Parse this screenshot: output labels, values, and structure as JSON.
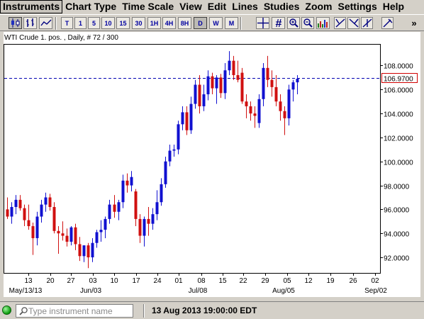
{
  "menu": {
    "items": [
      "Instruments",
      "Chart Type",
      "Time Scale",
      "View",
      "Edit",
      "Lines",
      "Studies",
      "Zoom",
      "Settings",
      "Help"
    ],
    "active": "Instruments"
  },
  "toolbar": {
    "chart_type_icons": [
      "candlestick-icon",
      "bar-chart-icon",
      "line-chart-icon"
    ],
    "timeframes": [
      "T",
      "1",
      "5",
      "10",
      "15",
      "30",
      "1H",
      "4H",
      "8H",
      "D",
      "W",
      "M"
    ],
    "active_timeframe": "D",
    "tool_icons": [
      "crosshair-icon",
      "grid-hash-icon",
      "magnifier-icon",
      "zoom-out-icon",
      "volume-bars-icon",
      "draw-line-icon-1",
      "draw-line-icon-2",
      "draw-line-icon-3",
      "draw-line-icon-4",
      "clear-drawings-icon"
    ],
    "overflow_label": "»"
  },
  "chart_header": "WTI Crude 1. pos. , Daily, # 72 / 300",
  "status": {
    "search_placeholder": "Type instrument name",
    "datetime": "13 Aug 2013 19:00:00 EDT"
  },
  "colors": {
    "up": "#1010d0",
    "down": "#d01010",
    "reference_line": "#0000b0",
    "current_price_border": "#d00000",
    "status_led": "#0a9a0a"
  },
  "chart_data": {
    "type": "candlestick",
    "instrument": "WTI Crude 1. pos.",
    "timeframe": "Daily",
    "reference_price": 106.97,
    "current_price_label": "106.9700",
    "ylim": [
      90.7,
      109.8
    ],
    "y_ticks": [
      "108.0000",
      "106.0000",
      "104.0000",
      "102.0000",
      "100.0000",
      "98.0000",
      "96.0000",
      "94.0000",
      "92.0000"
    ],
    "x_ticks": [
      "13",
      "20",
      "27",
      "03",
      "10",
      "17",
      "24",
      "01",
      "08",
      "15",
      "22",
      "29",
      "05",
      "12",
      "19",
      "26",
      "02"
    ],
    "x_month_labels": [
      "May/13/13",
      "Jun/03",
      "Jul/08",
      "Aug/05",
      "Sep/02"
    ],
    "candles": [
      {
        "date": "05-13",
        "open": 96.0,
        "high": 97.0,
        "low": 95.2,
        "close": 95.4
      },
      {
        "date": "05-14",
        "open": 95.4,
        "high": 96.6,
        "low": 94.8,
        "close": 96.2
      },
      {
        "date": "05-15",
        "open": 96.2,
        "high": 97.2,
        "low": 95.6,
        "close": 96.8
      },
      {
        "date": "05-16",
        "open": 96.8,
        "high": 97.2,
        "low": 95.9,
        "close": 96.1
      },
      {
        "date": "05-17",
        "open": 96.1,
        "high": 96.4,
        "low": 94.6,
        "close": 95.1
      },
      {
        "date": "05-20",
        "open": 95.1,
        "high": 96.4,
        "low": 94.3,
        "close": 94.6
      },
      {
        "date": "05-21",
        "open": 94.6,
        "high": 94.9,
        "low": 92.2,
        "close": 93.6
      },
      {
        "date": "05-22",
        "open": 93.6,
        "high": 95.8,
        "low": 93.0,
        "close": 95.4
      },
      {
        "date": "05-23",
        "open": 95.4,
        "high": 96.8,
        "low": 94.9,
        "close": 96.4
      },
      {
        "date": "05-24",
        "open": 96.4,
        "high": 97.4,
        "low": 95.8,
        "close": 97.0
      },
      {
        "date": "05-27",
        "open": 97.0,
        "high": 97.3,
        "low": 95.9,
        "close": 96.2
      },
      {
        "date": "05-28",
        "open": 96.2,
        "high": 96.6,
        "low": 94.0,
        "close": 94.2
      },
      {
        "date": "05-29",
        "open": 94.2,
        "high": 94.6,
        "low": 92.3,
        "close": 94.0
      },
      {
        "date": "05-30",
        "open": 94.0,
        "high": 95.0,
        "low": 93.4,
        "close": 93.8
      },
      {
        "date": "05-31",
        "open": 93.8,
        "high": 94.4,
        "low": 92.9,
        "close": 93.3
      },
      {
        "date": "06-03",
        "open": 93.3,
        "high": 94.6,
        "low": 93.0,
        "close": 94.5
      },
      {
        "date": "06-04",
        "open": 94.5,
        "high": 94.8,
        "low": 92.6,
        "close": 93.1
      },
      {
        "date": "06-05",
        "open": 93.1,
        "high": 93.7,
        "low": 91.7,
        "close": 92.1
      },
      {
        "date": "06-06",
        "open": 92.1,
        "high": 93.0,
        "low": 91.6,
        "close": 93.0
      },
      {
        "date": "06-07",
        "open": 93.0,
        "high": 93.2,
        "low": 91.1,
        "close": 92.0
      },
      {
        "date": "06-10",
        "open": 92.0,
        "high": 93.6,
        "low": 91.6,
        "close": 93.2
      },
      {
        "date": "06-11",
        "open": 93.2,
        "high": 94.3,
        "low": 92.8,
        "close": 94.1
      },
      {
        "date": "06-12",
        "open": 94.1,
        "high": 95.1,
        "low": 93.3,
        "close": 94.3
      },
      {
        "date": "06-13",
        "open": 94.3,
        "high": 95.4,
        "low": 93.6,
        "close": 95.2
      },
      {
        "date": "06-14",
        "open": 95.2,
        "high": 96.8,
        "low": 94.8,
        "close": 96.4
      },
      {
        "date": "06-17",
        "open": 96.4,
        "high": 97.2,
        "low": 95.3,
        "close": 95.8
      },
      {
        "date": "06-18",
        "open": 95.8,
        "high": 96.8,
        "low": 95.1,
        "close": 96.6
      },
      {
        "date": "06-19",
        "open": 96.6,
        "high": 98.9,
        "low": 96.1,
        "close": 98.4
      },
      {
        "date": "06-20",
        "open": 98.4,
        "high": 99.0,
        "low": 97.4,
        "close": 98.0
      },
      {
        "date": "06-21",
        "open": 98.0,
        "high": 99.2,
        "low": 97.5,
        "close": 98.7
      },
      {
        "date": "06-24",
        "open": 97.5,
        "high": 97.7,
        "low": 94.6,
        "close": 95.2
      },
      {
        "date": "06-25",
        "open": 95.2,
        "high": 95.6,
        "low": 93.2,
        "close": 93.8
      },
      {
        "date": "06-26",
        "open": 93.8,
        "high": 95.4,
        "low": 92.9,
        "close": 95.2
      },
      {
        "date": "06-27",
        "open": 95.2,
        "high": 96.2,
        "low": 93.8,
        "close": 94.8
      },
      {
        "date": "06-28",
        "open": 94.8,
        "high": 96.1,
        "low": 94.3,
        "close": 95.6
      },
      {
        "date": "07-01",
        "open": 95.6,
        "high": 97.6,
        "low": 95.1,
        "close": 96.6
      },
      {
        "date": "07-02",
        "open": 96.6,
        "high": 98.6,
        "low": 96.3,
        "close": 98.1
      },
      {
        "date": "07-03",
        "open": 98.1,
        "high": 100.4,
        "low": 97.8,
        "close": 100.0
      },
      {
        "date": "07-05",
        "open": 100.0,
        "high": 101.4,
        "low": 99.6,
        "close": 100.9
      },
      {
        "date": "07-08",
        "open": 100.9,
        "high": 101.4,
        "low": 100.4,
        "close": 101.0
      },
      {
        "date": "07-09",
        "open": 101.0,
        "high": 103.4,
        "low": 100.6,
        "close": 103.1
      },
      {
        "date": "07-10",
        "open": 103.1,
        "high": 104.6,
        "low": 102.6,
        "close": 104.1
      },
      {
        "date": "07-11",
        "open": 104.1,
        "high": 104.6,
        "low": 102.2,
        "close": 102.6
      },
      {
        "date": "07-12",
        "open": 102.6,
        "high": 105.4,
        "low": 102.3,
        "close": 104.8
      },
      {
        "date": "07-15",
        "open": 104.8,
        "high": 106.8,
        "low": 104.4,
        "close": 106.4
      },
      {
        "date": "07-16",
        "open": 106.4,
        "high": 107.2,
        "low": 104.0,
        "close": 104.6
      },
      {
        "date": "07-17",
        "open": 104.6,
        "high": 106.4,
        "low": 104.2,
        "close": 105.6
      },
      {
        "date": "07-18",
        "open": 105.6,
        "high": 107.6,
        "low": 105.1,
        "close": 107.1
      },
      {
        "date": "07-19",
        "open": 107.1,
        "high": 107.4,
        "low": 105.6,
        "close": 106.1
      },
      {
        "date": "07-22",
        "open": 106.1,
        "high": 107.2,
        "low": 104.8,
        "close": 107.0
      },
      {
        "date": "07-23",
        "open": 107.0,
        "high": 107.3,
        "low": 105.3,
        "close": 105.7
      },
      {
        "date": "07-24",
        "open": 105.7,
        "high": 108.2,
        "low": 105.2,
        "close": 107.6
      },
      {
        "date": "07-25",
        "open": 107.6,
        "high": 109.2,
        "low": 107.2,
        "close": 108.4
      },
      {
        "date": "07-26",
        "open": 108.4,
        "high": 108.8,
        "low": 106.8,
        "close": 107.2
      },
      {
        "date": "07-29",
        "open": 107.2,
        "high": 108.4,
        "low": 106.6,
        "close": 106.8
      },
      {
        "date": "07-30",
        "open": 107.4,
        "high": 107.8,
        "low": 104.8,
        "close": 105.0
      },
      {
        "date": "07-31",
        "open": 105.0,
        "high": 105.6,
        "low": 103.6,
        "close": 104.6
      },
      {
        "date": "08-01",
        "open": 104.6,
        "high": 105.0,
        "low": 103.4,
        "close": 104.0
      },
      {
        "date": "08-02",
        "open": 104.0,
        "high": 104.6,
        "low": 102.8,
        "close": 103.8
      },
      {
        "date": "08-05",
        "open": 103.2,
        "high": 105.6,
        "low": 102.8,
        "close": 105.2
      },
      {
        "date": "08-06",
        "open": 105.2,
        "high": 108.2,
        "low": 104.6,
        "close": 107.8
      },
      {
        "date": "08-07",
        "open": 107.8,
        "high": 108.8,
        "low": 106.2,
        "close": 106.8
      },
      {
        "date": "08-08",
        "open": 106.8,
        "high": 107.6,
        "low": 105.4,
        "close": 106.2
      },
      {
        "date": "08-09",
        "open": 106.2,
        "high": 107.2,
        "low": 104.6,
        "close": 105.0
      },
      {
        "date": "08-12",
        "open": 105.0,
        "high": 105.6,
        "low": 103.4,
        "close": 104.2
      },
      {
        "date": "08-13",
        "open": 104.2,
        "high": 104.6,
        "low": 102.2,
        "close": 103.6
      },
      {
        "date": "08-14",
        "open": 103.6,
        "high": 106.4,
        "low": 103.0,
        "close": 106.0
      },
      {
        "date": "08-15",
        "open": 106.0,
        "high": 106.8,
        "low": 105.0,
        "close": 106.6
      },
      {
        "date": "08-16",
        "open": 106.6,
        "high": 107.2,
        "low": 105.6,
        "close": 106.9
      }
    ]
  }
}
